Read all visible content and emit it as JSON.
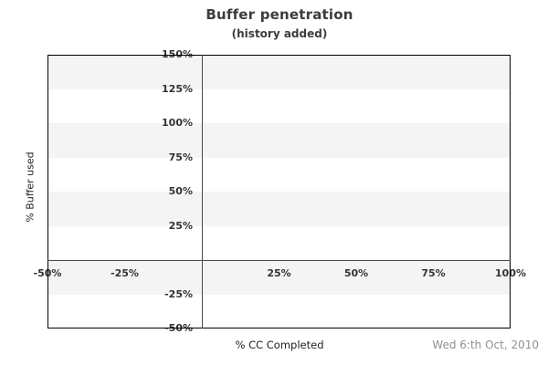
{
  "chart_data": {
    "type": "scatter",
    "title": "Buffer penetration",
    "subtitle": "(history added)",
    "xlabel": "% CC Completed",
    "ylabel": "% Buffer used",
    "xlim": [
      -50,
      100
    ],
    "ylim": [
      -50,
      150
    ],
    "xticks": [
      {
        "value": -50,
        "label": "-50%"
      },
      {
        "value": -25,
        "label": "-25%"
      },
      {
        "value": 25,
        "label": "25%"
      },
      {
        "value": 50,
        "label": "50%"
      },
      {
        "value": 75,
        "label": "75%"
      },
      {
        "value": 100,
        "label": "100%"
      }
    ],
    "yticks": [
      {
        "value": 150,
        "label": "150%"
      },
      {
        "value": 125,
        "label": "125%"
      },
      {
        "value": 100,
        "label": "100%"
      },
      {
        "value": 75,
        "label": "75%"
      },
      {
        "value": 50,
        "label": "50%"
      },
      {
        "value": 25,
        "label": "25%"
      },
      {
        "value": -25,
        "label": "-25%"
      },
      {
        "value": -50,
        "label": "-50%"
      }
    ],
    "grid_bands": [
      {
        "from": 125,
        "to": 150
      },
      {
        "from": 75,
        "to": 100
      },
      {
        "from": 25,
        "to": 50
      },
      {
        "from": -25,
        "to": 0
      }
    ],
    "axis_cross": {
      "x": 0,
      "y": 0
    },
    "series": [],
    "legend": null,
    "grid": "striped-bands"
  },
  "footer": {
    "date": "Wed 6:th Oct, 2010"
  },
  "colors": {
    "band": "#f4f4f4",
    "frame": "#000000",
    "axis": "#4a4a4a",
    "tick_text": "#333333",
    "title_text": "#3c3c3c",
    "date_text": "#909090"
  }
}
